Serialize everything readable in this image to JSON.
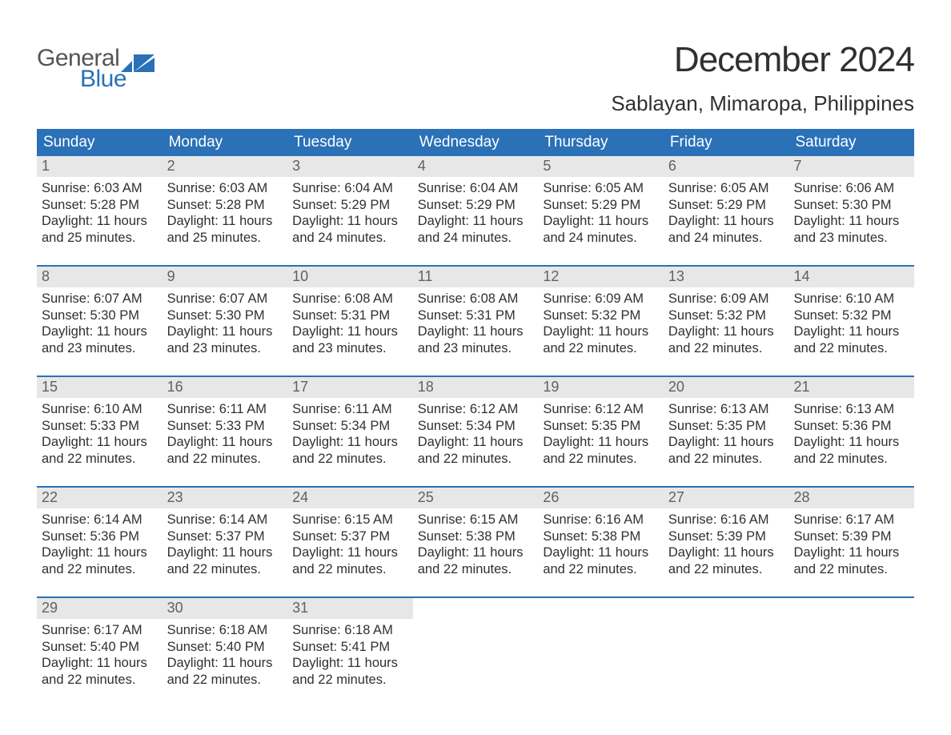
{
  "logo": {
    "word1": "General",
    "word2": "Blue",
    "colors": {
      "text_gray": "#555555",
      "text_blue": "#2a71b8",
      "icon_blue": "#2a71b8"
    }
  },
  "title": "December 2024",
  "location": "Sablayan, Mimaropa, Philippines",
  "palette": {
    "header_bg": "#2a71b8",
    "header_text": "#ffffff",
    "daynum_bg": "#e7e7e7",
    "daynum_text": "#616161",
    "body_text": "#303030",
    "week_border": "#2a71b8",
    "page_bg": "#ffffff"
  },
  "typography": {
    "month_title_pt": 33,
    "location_pt": 20,
    "dow_pt": 14,
    "daynum_pt": 14,
    "body_pt": 12,
    "font_family": "Arial"
  },
  "days_of_week": [
    "Sunday",
    "Monday",
    "Tuesday",
    "Wednesday",
    "Thursday",
    "Friday",
    "Saturday"
  ],
  "weeks": [
    [
      {
        "n": "1",
        "sunrise": "6:03 AM",
        "sunset": "5:28 PM",
        "dl": "11 hours and 25 minutes."
      },
      {
        "n": "2",
        "sunrise": "6:03 AM",
        "sunset": "5:28 PM",
        "dl": "11 hours and 25 minutes."
      },
      {
        "n": "3",
        "sunrise": "6:04 AM",
        "sunset": "5:29 PM",
        "dl": "11 hours and 24 minutes."
      },
      {
        "n": "4",
        "sunrise": "6:04 AM",
        "sunset": "5:29 PM",
        "dl": "11 hours and 24 minutes."
      },
      {
        "n": "5",
        "sunrise": "6:05 AM",
        "sunset": "5:29 PM",
        "dl": "11 hours and 24 minutes."
      },
      {
        "n": "6",
        "sunrise": "6:05 AM",
        "sunset": "5:29 PM",
        "dl": "11 hours and 24 minutes."
      },
      {
        "n": "7",
        "sunrise": "6:06 AM",
        "sunset": "5:30 PM",
        "dl": "11 hours and 23 minutes."
      }
    ],
    [
      {
        "n": "8",
        "sunrise": "6:07 AM",
        "sunset": "5:30 PM",
        "dl": "11 hours and 23 minutes."
      },
      {
        "n": "9",
        "sunrise": "6:07 AM",
        "sunset": "5:30 PM",
        "dl": "11 hours and 23 minutes."
      },
      {
        "n": "10",
        "sunrise": "6:08 AM",
        "sunset": "5:31 PM",
        "dl": "11 hours and 23 minutes."
      },
      {
        "n": "11",
        "sunrise": "6:08 AM",
        "sunset": "5:31 PM",
        "dl": "11 hours and 23 minutes."
      },
      {
        "n": "12",
        "sunrise": "6:09 AM",
        "sunset": "5:32 PM",
        "dl": "11 hours and 22 minutes."
      },
      {
        "n": "13",
        "sunrise": "6:09 AM",
        "sunset": "5:32 PM",
        "dl": "11 hours and 22 minutes."
      },
      {
        "n": "14",
        "sunrise": "6:10 AM",
        "sunset": "5:32 PM",
        "dl": "11 hours and 22 minutes."
      }
    ],
    [
      {
        "n": "15",
        "sunrise": "6:10 AM",
        "sunset": "5:33 PM",
        "dl": "11 hours and 22 minutes."
      },
      {
        "n": "16",
        "sunrise": "6:11 AM",
        "sunset": "5:33 PM",
        "dl": "11 hours and 22 minutes."
      },
      {
        "n": "17",
        "sunrise": "6:11 AM",
        "sunset": "5:34 PM",
        "dl": "11 hours and 22 minutes."
      },
      {
        "n": "18",
        "sunrise": "6:12 AM",
        "sunset": "5:34 PM",
        "dl": "11 hours and 22 minutes."
      },
      {
        "n": "19",
        "sunrise": "6:12 AM",
        "sunset": "5:35 PM",
        "dl": "11 hours and 22 minutes."
      },
      {
        "n": "20",
        "sunrise": "6:13 AM",
        "sunset": "5:35 PM",
        "dl": "11 hours and 22 minutes."
      },
      {
        "n": "21",
        "sunrise": "6:13 AM",
        "sunset": "5:36 PM",
        "dl": "11 hours and 22 minutes."
      }
    ],
    [
      {
        "n": "22",
        "sunrise": "6:14 AM",
        "sunset": "5:36 PM",
        "dl": "11 hours and 22 minutes."
      },
      {
        "n": "23",
        "sunrise": "6:14 AM",
        "sunset": "5:37 PM",
        "dl": "11 hours and 22 minutes."
      },
      {
        "n": "24",
        "sunrise": "6:15 AM",
        "sunset": "5:37 PM",
        "dl": "11 hours and 22 minutes."
      },
      {
        "n": "25",
        "sunrise": "6:15 AM",
        "sunset": "5:38 PM",
        "dl": "11 hours and 22 minutes."
      },
      {
        "n": "26",
        "sunrise": "6:16 AM",
        "sunset": "5:38 PM",
        "dl": "11 hours and 22 minutes."
      },
      {
        "n": "27",
        "sunrise": "6:16 AM",
        "sunset": "5:39 PM",
        "dl": "11 hours and 22 minutes."
      },
      {
        "n": "28",
        "sunrise": "6:17 AM",
        "sunset": "5:39 PM",
        "dl": "11 hours and 22 minutes."
      }
    ],
    [
      {
        "n": "29",
        "sunrise": "6:17 AM",
        "sunset": "5:40 PM",
        "dl": "11 hours and 22 minutes."
      },
      {
        "n": "30",
        "sunrise": "6:18 AM",
        "sunset": "5:40 PM",
        "dl": "11 hours and 22 minutes."
      },
      {
        "n": "31",
        "sunrise": "6:18 AM",
        "sunset": "5:41 PM",
        "dl": "11 hours and 22 minutes."
      },
      null,
      null,
      null,
      null
    ]
  ],
  "labels": {
    "sunrise": "Sunrise: ",
    "sunset": "Sunset: ",
    "daylight": "Daylight: "
  }
}
